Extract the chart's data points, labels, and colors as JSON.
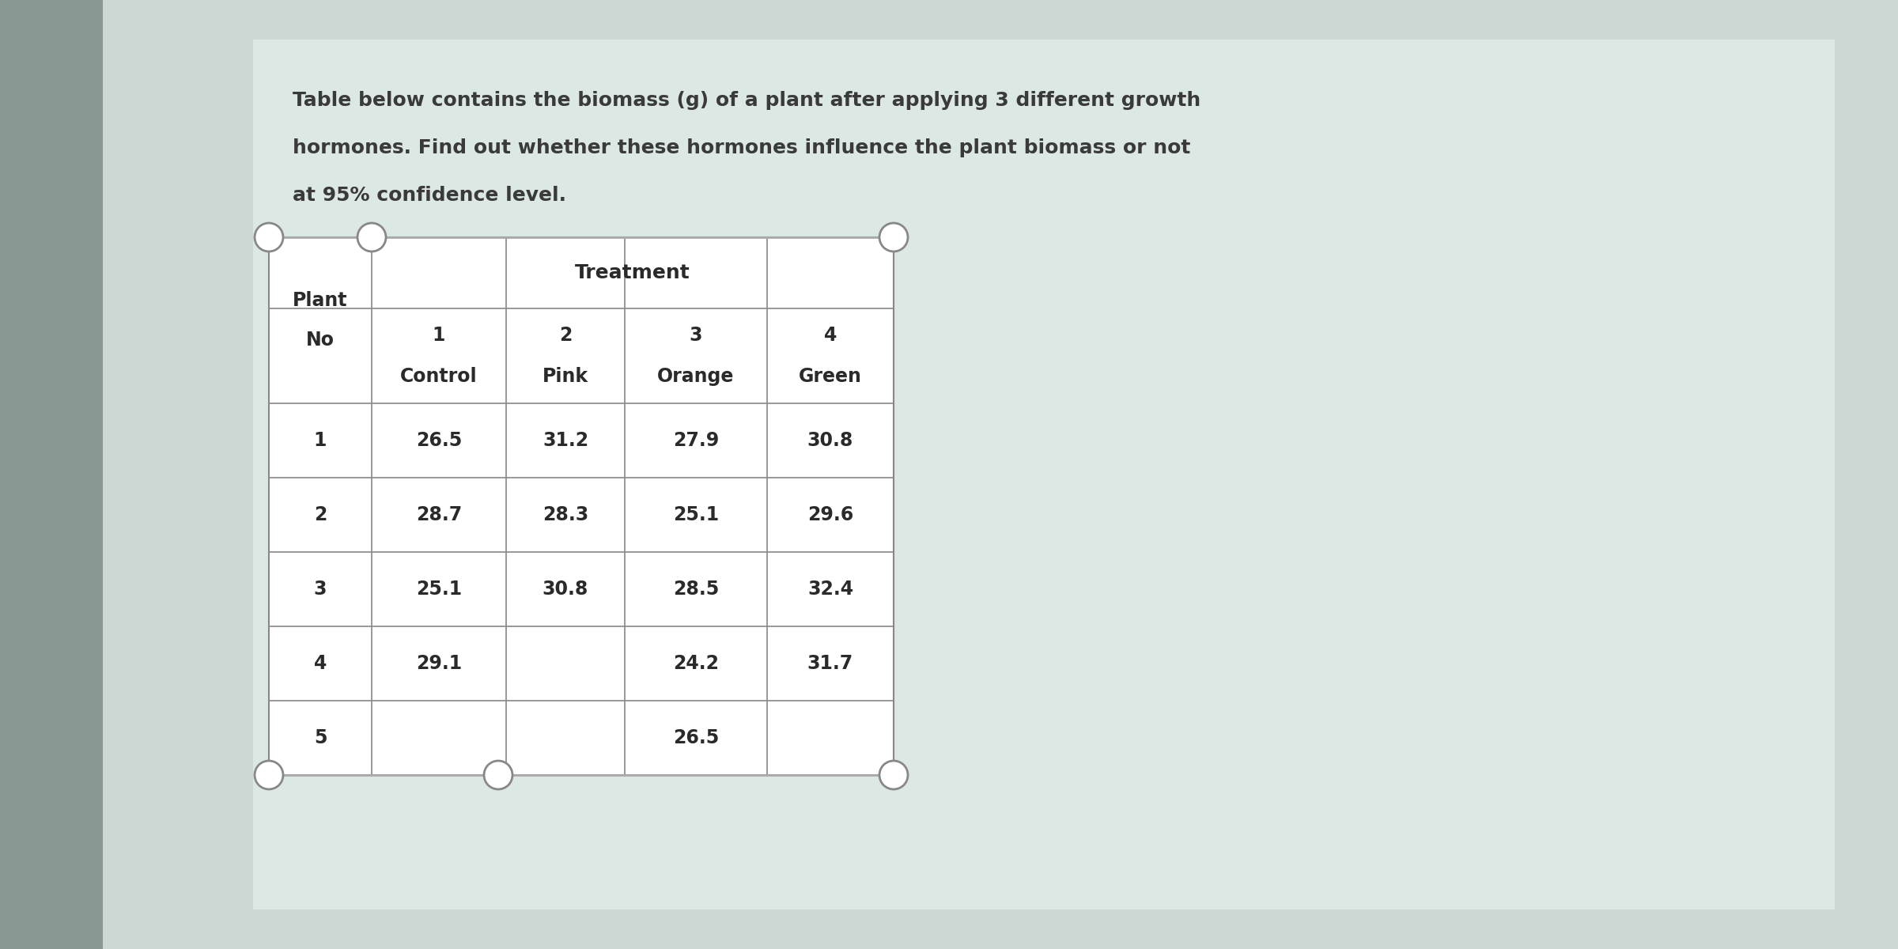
{
  "title_line1": "Table below contains the biomass (g) of a plant after applying 3 different growth",
  "title_line2": "hormones. Find out whether these hormones influence the plant biomass or not",
  "title_line3": "at 95% confidence level.",
  "bg_outer": "#b8c4c0",
  "bg_inner": "#d8e2de",
  "bg_panel": "#e4eeea",
  "table_bg": "#f0f4f2",
  "treatment_header": "Treatment",
  "plant_nos": [
    "1",
    "2",
    "3",
    "4",
    "5"
  ],
  "data_control": [
    "26.5",
    "28.7",
    "25.1",
    "29.1",
    ""
  ],
  "data_pink": [
    "31.2",
    "28.3",
    "30.8",
    "",
    ""
  ],
  "data_orange": [
    "27.9",
    "25.1",
    "28.5",
    "24.2",
    "26.5"
  ],
  "data_green": [
    "30.8",
    "29.6",
    "32.4",
    "31.7",
    ""
  ],
  "title_fontsize": 18,
  "header_fontsize": 17,
  "data_fontsize": 17,
  "title_color": "#3a3a3a",
  "header_color": "#2a2a2a",
  "data_color": "#2a2a2a"
}
